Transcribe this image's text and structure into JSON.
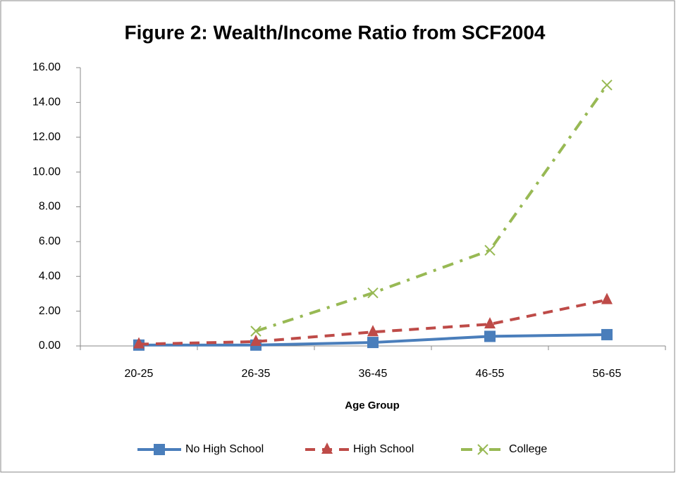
{
  "chart_data": {
    "type": "line",
    "title": "Figure 2: Wealth/Income Ratio from SCF2004",
    "x_label": "Age Group",
    "categories": [
      "20-25",
      "26-35",
      "36-45",
      "46-55",
      "56-65"
    ],
    "series": [
      {
        "name": "No High School",
        "color": "#4a7ebb",
        "marker": "square",
        "dash": "solid",
        "values": [
          0.05,
          0.05,
          0.2,
          0.55,
          0.65
        ]
      },
      {
        "name": "High School",
        "color": "#be4b48",
        "marker": "triangle",
        "dash": "dash",
        "values": [
          0.1,
          0.25,
          0.8,
          1.25,
          2.65
        ]
      },
      {
        "name": "College",
        "color": "#98b954",
        "marker": "x",
        "dash": "dashdot",
        "values": [
          null,
          0.85,
          3.05,
          5.5,
          15.0
        ]
      }
    ],
    "ylim": [
      0,
      16
    ],
    "yticks": [
      {
        "value": 0,
        "label": "0.00"
      },
      {
        "value": 2,
        "label": "2.00"
      },
      {
        "value": 4,
        "label": "4.00"
      },
      {
        "value": 6,
        "label": "6.00"
      },
      {
        "value": 8,
        "label": "8.00"
      },
      {
        "value": 10,
        "label": "10.00"
      },
      {
        "value": 12,
        "label": "12.00"
      },
      {
        "value": 14,
        "label": "14.00"
      },
      {
        "value": 16,
        "label": "16.00"
      }
    ],
    "legend": "bottom",
    "grid": false
  }
}
